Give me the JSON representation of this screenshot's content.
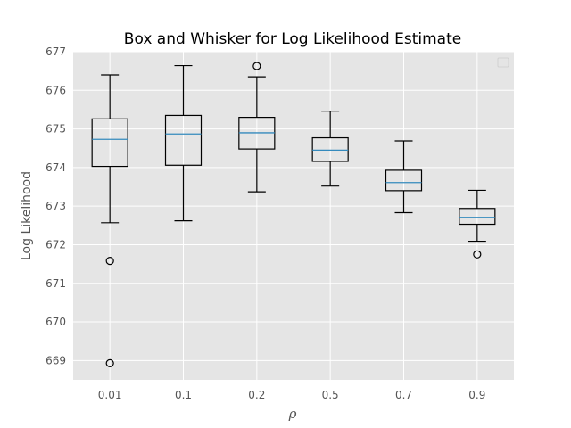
{
  "chart_data": {
    "type": "box",
    "title": "Box and Whisker for Log Likelihood Estimate",
    "xlabel": "ρ",
    "ylabel": "Log Likelihood",
    "ylim": [
      668.5,
      677.0
    ],
    "yticks": [
      "669",
      "670",
      "671",
      "672",
      "673",
      "674",
      "675",
      "676",
      "677"
    ],
    "grid": true,
    "legend": "top-right (empty)",
    "colors": {
      "plot_background": "#e5e5e5",
      "grid": "#ffffff",
      "box_edge": "#000000",
      "median": "#348abd",
      "tick_text": "#555555"
    },
    "categories": [
      "0.01",
      "0.1",
      "0.2",
      "0.5",
      "0.7",
      "0.9"
    ],
    "boxes": [
      {
        "category": "0.01",
        "whisker_low": 672.57,
        "q1": 674.03,
        "median": 674.73,
        "q3": 675.26,
        "whisker_high": 676.4,
        "outliers": [
          671.58,
          668.93
        ]
      },
      {
        "category": "0.1",
        "whisker_low": 672.62,
        "q1": 674.06,
        "median": 674.87,
        "q3": 675.35,
        "whisker_high": 676.64,
        "outliers": []
      },
      {
        "category": "0.2",
        "whisker_low": 673.37,
        "q1": 674.48,
        "median": 674.9,
        "q3": 675.3,
        "whisker_high": 676.35,
        "outliers": [
          676.63
        ]
      },
      {
        "category": "0.5",
        "whisker_low": 673.52,
        "q1": 674.16,
        "median": 674.45,
        "q3": 674.77,
        "whisker_high": 675.46,
        "outliers": []
      },
      {
        "category": "0.7",
        "whisker_low": 672.83,
        "q1": 673.4,
        "median": 673.61,
        "q3": 673.93,
        "whisker_high": 674.69,
        "outliers": []
      },
      {
        "category": "0.9",
        "whisker_low": 672.09,
        "q1": 672.53,
        "median": 672.71,
        "q3": 672.94,
        "whisker_high": 673.41,
        "outliers": [
          671.75
        ]
      }
    ]
  }
}
